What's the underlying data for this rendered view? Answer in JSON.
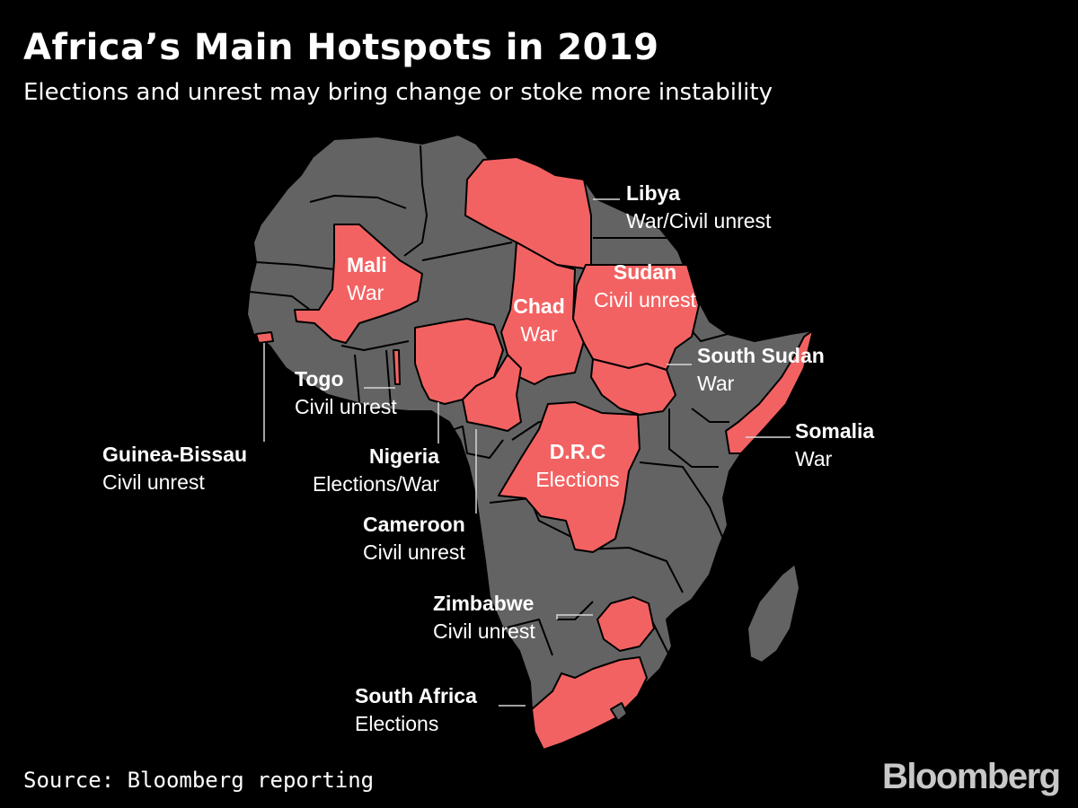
{
  "header": {
    "title": "Africa’s Main Hotspots in 2019",
    "subtitle": "Elections and unrest may bring change or stoke more instability"
  },
  "footer": {
    "source": "Source: Bloomberg reporting",
    "brand": "Bloomberg"
  },
  "colors": {
    "background": "#000000",
    "land": "#636363",
    "hotspot": "#f36262",
    "text": "#ffffff"
  },
  "hotspots": [
    {
      "country": "Libya",
      "status": "War/Civil unrest"
    },
    {
      "country": "Mali",
      "status": "War"
    },
    {
      "country": "Sudan",
      "status": "Civil unrest"
    },
    {
      "country": "Chad",
      "status": "War"
    },
    {
      "country": "South Sudan",
      "status": "War"
    },
    {
      "country": "Togo",
      "status": "Civil unrest"
    },
    {
      "country": "Somalia",
      "status": "War"
    },
    {
      "country": "Guinea-Bissau",
      "status": "Civil unrest"
    },
    {
      "country": "Nigeria",
      "status": "Elections/War"
    },
    {
      "country": "D.R.C",
      "status": "Elections"
    },
    {
      "country": "Cameroon",
      "status": "Civil unrest"
    },
    {
      "country": "Zimbabwe",
      "status": "Civil unrest"
    },
    {
      "country": "South Africa",
      "status": "Elections"
    }
  ]
}
